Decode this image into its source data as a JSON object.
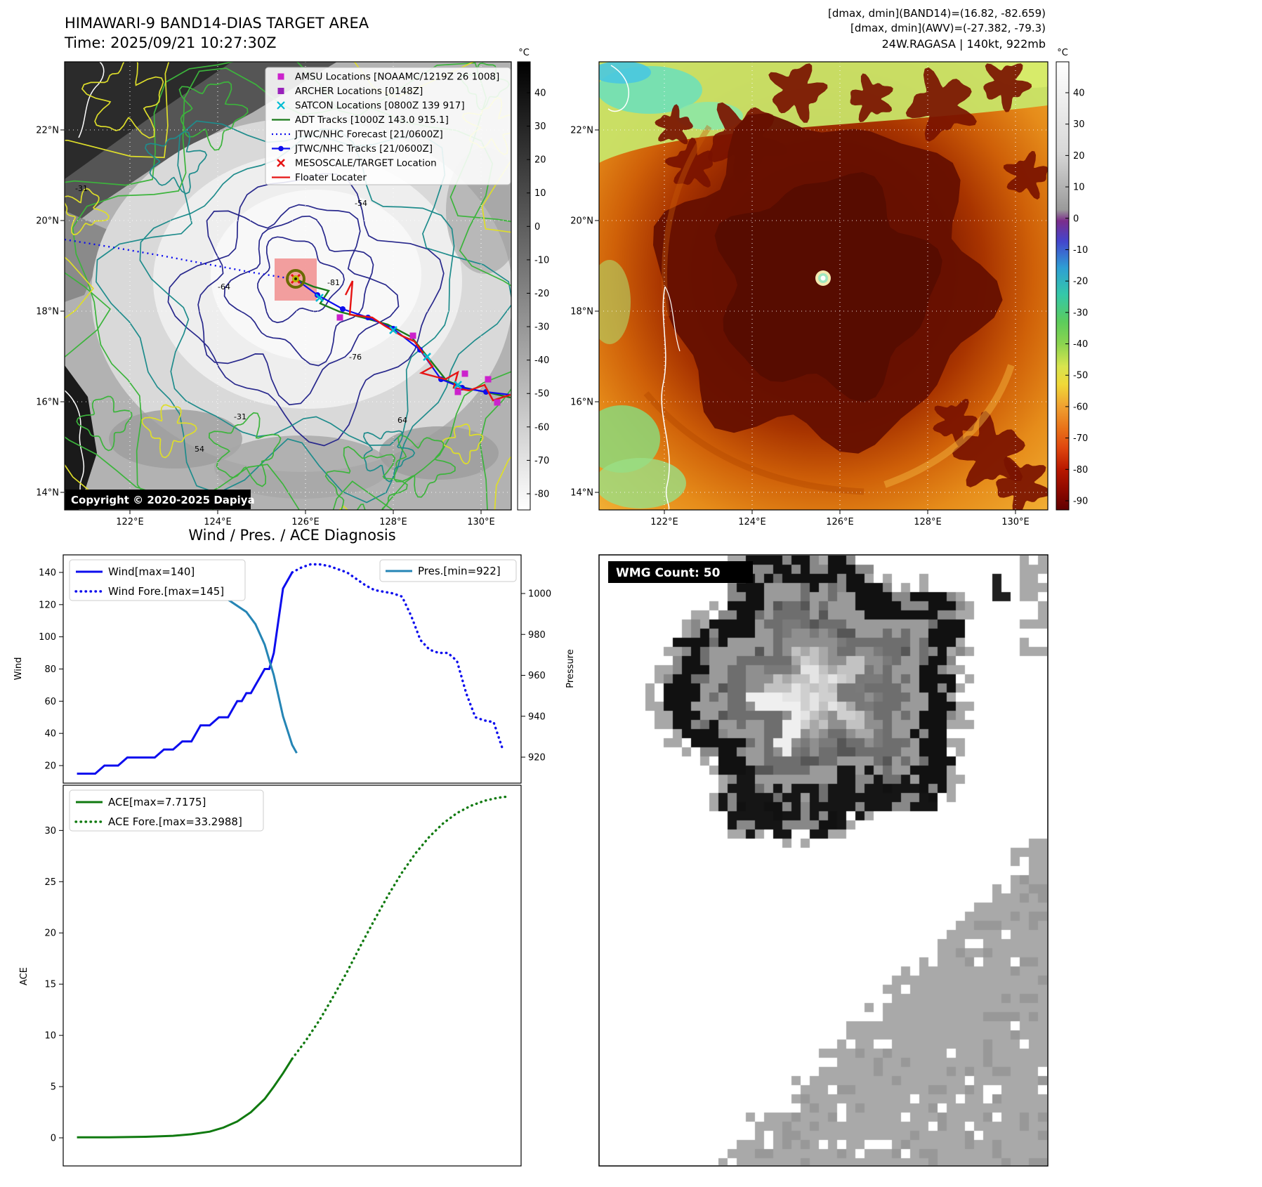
{
  "band14": {
    "title": "HIMAWARI-9 BAND14-DIAS TARGET AREA",
    "time": "Time: 2025/09/21 10:27:30Z",
    "copyright": "Copyright © 2020-2025 Dapiya",
    "colorbar_unit": "°C",
    "colorbar_ticks": [
      "40",
      "30",
      "20",
      "10",
      "0",
      "-10",
      "-20",
      "-30",
      "-40",
      "-50",
      "-60",
      "-70",
      "-80"
    ],
    "lat_ticks": [
      "22°N",
      "20°N",
      "18°N",
      "16°N",
      "14°N"
    ],
    "lon_ticks": [
      "122°E",
      "124°E",
      "126°E",
      "128°E",
      "130°E"
    ],
    "contour_labels": [
      "-54",
      "-81",
      "-76",
      "-64",
      "-31",
      "54",
      "64",
      "-31"
    ],
    "legend": [
      {
        "label": "AMSU Locations [NOAAMC/1219Z 26 1008]",
        "marker": "square",
        "color": "#cc22cc"
      },
      {
        "label": "ARCHER Locations [0148Z]",
        "marker": "square",
        "color": "#9922bb"
      },
      {
        "label": "SATCON Locations [0800Z 139 917]",
        "marker": "x",
        "color": "#00bcd4"
      },
      {
        "label": "ADT Tracks [1000Z 143.0 915.1]",
        "marker": "line",
        "color": "#1a7a1a"
      },
      {
        "label": "JTWC/NHC Forecast [21/0600Z]",
        "marker": "dotted-line",
        "color": "#0d0dee"
      },
      {
        "label": "JTWC/NHC Tracks [21/0600Z]",
        "marker": "line-dot",
        "color": "#0d0dee"
      },
      {
        "label": "MESOSCALE/TARGET Location",
        "marker": "x",
        "color": "#e61414"
      },
      {
        "label": "Floater Locater",
        "marker": "line",
        "color": "#e61414"
      }
    ]
  },
  "awv": {
    "header": [
      "[dmax, dmin](BAND14)=(16.82, -82.659)",
      "[dmax, dmin](AWV)=(-27.382, -79.3)",
      "24W.RAGASA | 140kt, 922mb"
    ],
    "colorbar_unit": "°C",
    "colorbar_ticks": [
      "40",
      "30",
      "20",
      "10",
      "0",
      "-10",
      "-20",
      "-30",
      "-40",
      "-50",
      "-60",
      "-70",
      "-80",
      "-90"
    ],
    "lat_ticks": [
      "22°N",
      "20°N",
      "18°N",
      "16°N",
      "14°N"
    ],
    "lon_ticks": [
      "122°E",
      "124°E",
      "126°E",
      "128°E",
      "130°E"
    ]
  },
  "wmg": {
    "label": "WMG Count: 50"
  },
  "chart_data": [
    {
      "type": "line",
      "title": "Wind / Pres. / ACE Diagnosis",
      "xlabel": "",
      "ylabel_left": "Wind",
      "ylabel_right": "Pressure",
      "x_range": [
        0,
        100
      ],
      "ylim_left": [
        10,
        150
      ],
      "ylim_right": [
        915,
        1012
      ],
      "yticks_left": [
        20,
        40,
        60,
        80,
        100,
        120,
        140
      ],
      "yticks_right": [
        920,
        940,
        960,
        980,
        1000
      ],
      "grid": false,
      "legend_left": [
        "Wind[max=140]",
        "Wind Fore.[max=145]"
      ],
      "legend_right": [
        "Pres.[min=922]"
      ],
      "series": [
        {
          "name": "Wind[max=140]",
          "axis": "left",
          "style": "solid",
          "color": "#0d0dee",
          "x": [
            3,
            7,
            9,
            12,
            14,
            20,
            22,
            24,
            26,
            28,
            30,
            32,
            34,
            36,
            37,
            38,
            39,
            40,
            41,
            42,
            43,
            44,
            45,
            46,
            47,
            48,
            50
          ],
          "y": [
            15,
            15,
            20,
            20,
            25,
            25,
            30,
            30,
            35,
            35,
            45,
            45,
            50,
            50,
            55,
            60,
            60,
            65,
            65,
            70,
            75,
            80,
            80,
            90,
            110,
            130,
            140
          ]
        },
        {
          "name": "Wind Fore.[max=145]",
          "axis": "left",
          "style": "dotted",
          "color": "#0d0dee",
          "x": [
            50,
            52,
            54,
            56,
            58,
            60,
            62,
            64,
            66,
            68,
            70,
            72,
            74,
            76,
            78,
            80,
            82,
            84,
            86,
            88,
            90,
            92,
            94,
            96
          ],
          "y": [
            140,
            143,
            145,
            145,
            144,
            142,
            140,
            136,
            132,
            129,
            128,
            127,
            125,
            113,
            98,
            92,
            90,
            90,
            85,
            65,
            50,
            48,
            47,
            30
          ]
        },
        {
          "name": "Pres.[min=922]",
          "axis": "right",
          "style": "solid",
          "color": "#2585b5",
          "x": [
            3,
            10,
            18,
            24,
            28,
            32,
            36,
            40,
            42,
            44,
            46,
            48,
            50,
            51
          ],
          "y": [
            1008,
            1008,
            1007,
            1006,
            1004,
            1001,
            997,
            991,
            985,
            975,
            960,
            940,
            926,
            922
          ]
        }
      ]
    },
    {
      "type": "line",
      "title": "",
      "ylabel_left": "ACE",
      "x_range": [
        0,
        100
      ],
      "ylim_left": [
        -1.5,
        35
      ],
      "yticks_left": [
        0,
        5,
        10,
        15,
        20,
        25,
        30
      ],
      "grid": false,
      "legend_left": [
        "ACE[max=7.7175]",
        "ACE Fore.[max=33.2988]"
      ],
      "series": [
        {
          "name": "ACE[max=7.7175]",
          "axis": "left",
          "style": "solid",
          "color": "#107a10",
          "x": [
            3,
            10,
            18,
            24,
            28,
            32,
            35,
            38,
            41,
            44,
            46,
            48,
            50
          ],
          "y": [
            0.05,
            0.05,
            0.1,
            0.2,
            0.35,
            0.6,
            1.0,
            1.6,
            2.5,
            3.8,
            5.0,
            6.3,
            7.7175
          ]
        },
        {
          "name": "ACE Fore.[max=33.2988]",
          "axis": "left",
          "style": "dotted",
          "color": "#107a10",
          "x": [
            50,
            53,
            56,
            59,
            62,
            65,
            68,
            71,
            74,
            77,
            80,
            83,
            86,
            89,
            92,
            95,
            97
          ],
          "y": [
            7.7175,
            9.5,
            11.5,
            13.8,
            16.2,
            18.8,
            21.3,
            23.7,
            25.9,
            27.8,
            29.4,
            30.7,
            31.7,
            32.4,
            32.9,
            33.2,
            33.2988
          ]
        }
      ]
    }
  ]
}
